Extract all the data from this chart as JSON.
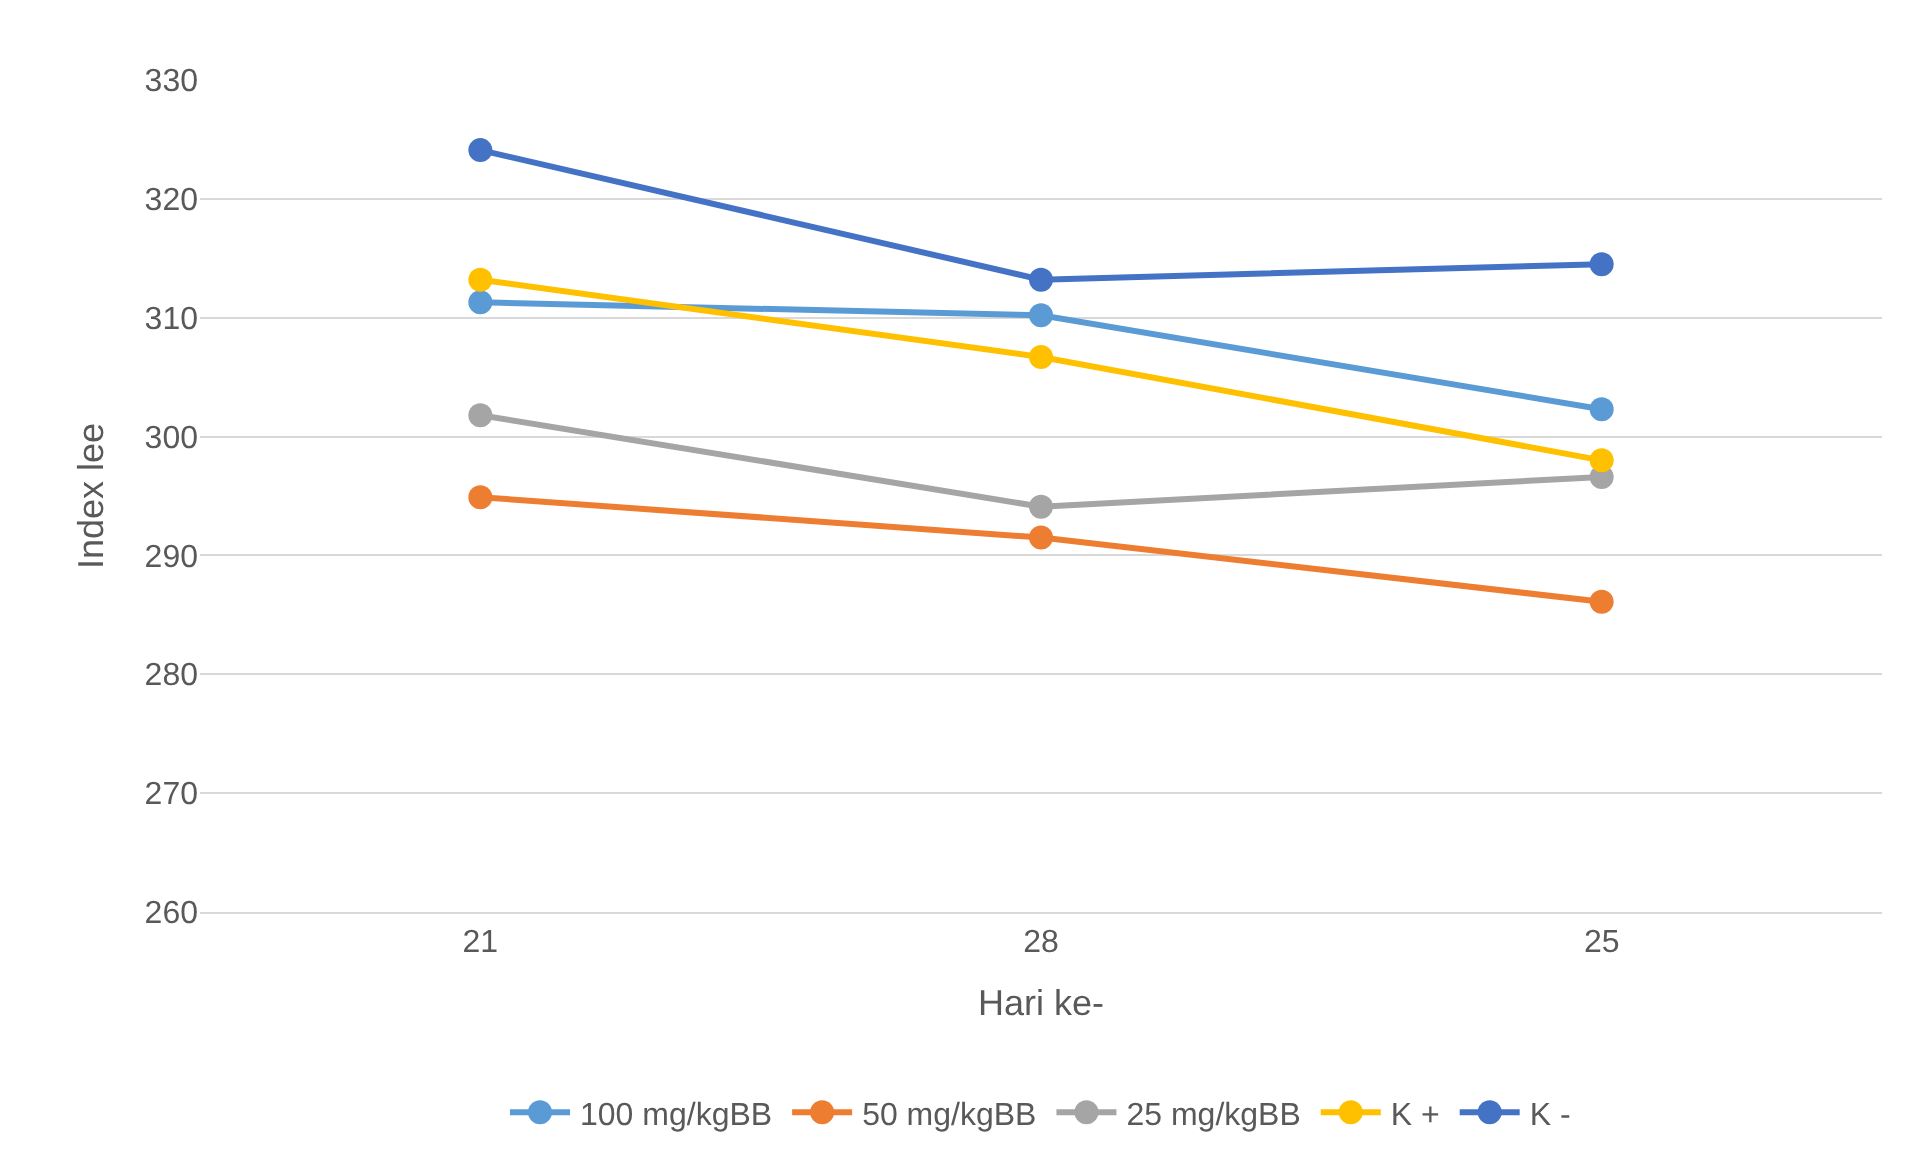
{
  "chart_data": {
    "type": "line",
    "xlabel": "Hari ke-",
    "ylabel": "Index lee",
    "categories": [
      "21",
      "28",
      "25"
    ],
    "series": [
      {
        "name": "100 mg/kgBB",
        "color": "#5b9bd5",
        "values": [
          311.3,
          310.2,
          302.3
        ]
      },
      {
        "name": "50 mg/kgBB",
        "color": "#ed7d31",
        "values": [
          294.9,
          291.5,
          286.1
        ]
      },
      {
        "name": "25 mg/kgBB",
        "color": "#a5a5a5",
        "values": [
          301.8,
          294.1,
          296.6
        ]
      },
      {
        "name": "K +",
        "color": "#ffc000",
        "values": [
          313.2,
          306.7,
          298.0
        ]
      },
      {
        "name": "K -",
        "color": "#4472c4",
        "values": [
          324.1,
          313.2,
          314.5
        ]
      }
    ],
    "ylim": [
      260,
      330
    ],
    "yticks": [
      260,
      270,
      280,
      290,
      300,
      310,
      320,
      330
    ],
    "grid": "y",
    "legend": "bottom",
    "marker": "circle",
    "line_style": "solid"
  }
}
